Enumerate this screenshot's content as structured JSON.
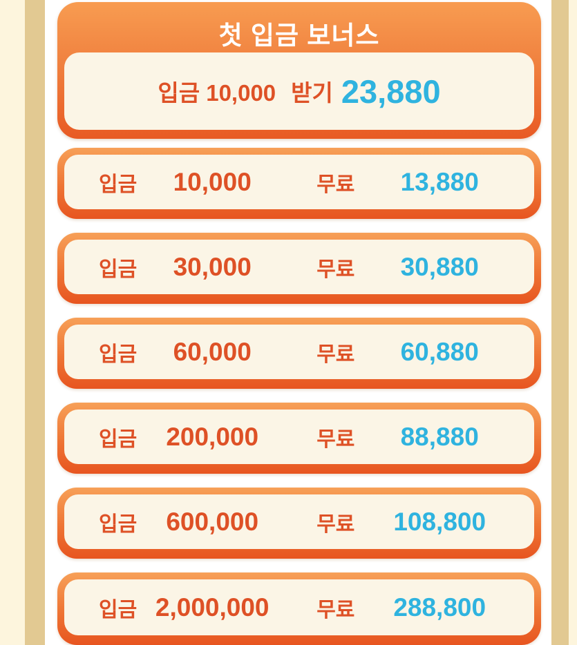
{
  "colors": {
    "page_white": "#ffffff",
    "side_cream": "#fdf5dd",
    "side_tan": "#e2c992",
    "card_gradient_top": "#f89c51",
    "card_gradient_bottom": "#e85520",
    "card_interior_cream": "#fbf5e6",
    "deposit_text_orange": "#de5126",
    "bonus_text_cyan": "#2fb3df",
    "title_text_white": "#ffffff"
  },
  "header": {
    "title": "첫 입금 보너스",
    "claim": {
      "deposit_text": "입금 10,000",
      "action_label": "받기",
      "bonus_amount": "23,880"
    }
  },
  "rows": [
    {
      "deposit_label": "입금",
      "deposit": "10,000",
      "free_label": "무료",
      "bonus": "13,880"
    },
    {
      "deposit_label": "입금",
      "deposit": "30,000",
      "free_label": "무료",
      "bonus": "30,880"
    },
    {
      "deposit_label": "입금",
      "deposit": "60,000",
      "free_label": "무료",
      "bonus": "60,880"
    },
    {
      "deposit_label": "입금",
      "deposit": "200,000",
      "free_label": "무료",
      "bonus": "88,880"
    },
    {
      "deposit_label": "입금",
      "deposit": "600,000",
      "free_label": "무료",
      "bonus": "108,800"
    },
    {
      "deposit_label": "입금",
      "deposit": "2,000,000",
      "free_label": "무료",
      "bonus": "288,800"
    }
  ]
}
